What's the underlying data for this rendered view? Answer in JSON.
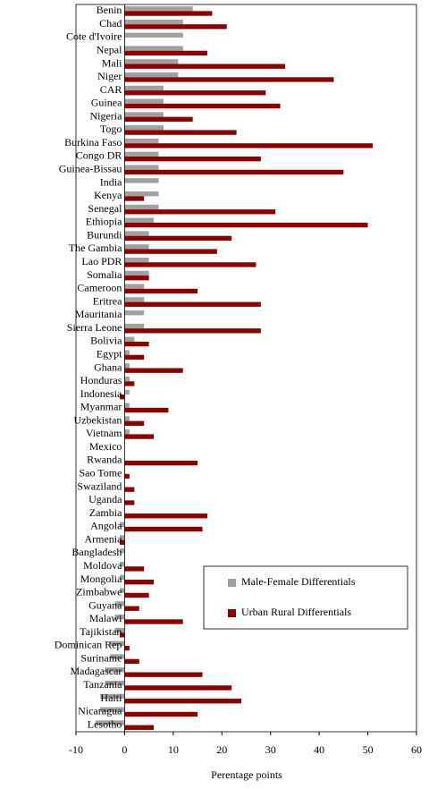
{
  "chart_data": {
    "type": "hbar",
    "xlabel": "Perentage points",
    "categories": [
      "Benin",
      "Chad",
      "Cote d'Ivoire",
      "Nepal",
      "Mali",
      "Niger",
      "CAR",
      "Guinea",
      "Nigeria",
      "Togo",
      "Burkina Faso",
      "Congo DR",
      "Guinea-Bissau",
      "India",
      "Kenya",
      "Senegal",
      "Ethiopia",
      "Burundi",
      "The Gambia",
      "Lao PDR",
      "Somalia",
      "Cameroon",
      "Eritrea",
      "Mauritania",
      "Sierra Leone",
      "Bolivia",
      "Egypt",
      "Ghana",
      "Honduras",
      "Indonesia",
      "Myanmar",
      "Uzbekistan",
      "Vietnam",
      "Mexico",
      "Rwanda",
      "Sao Tome",
      "Swaziland",
      "Uganda",
      "Zambia",
      "Angola",
      "Armenia",
      "Bangladesh",
      "Moldova",
      "Mongolia",
      "Zimbabwe",
      "Guyana",
      "Malawi",
      "Tajikistan",
      "Dominican Rep",
      "Suriname",
      "Madagascar",
      "Tanzania",
      "Haiti",
      "Nicaragua",
      "Lesotho"
    ],
    "series": [
      {
        "name": "Male-Female Differentials",
        "color": "#a0a0a0",
        "values": [
          14,
          12,
          12,
          12,
          11,
          11,
          8,
          8,
          8,
          8,
          7,
          7,
          7,
          7,
          7,
          7,
          6,
          5,
          5,
          5,
          5,
          4,
          4,
          4,
          4,
          2,
          1,
          1,
          1,
          1,
          1,
          1,
          1,
          null,
          0,
          0,
          0,
          0,
          0,
          -1,
          -1,
          -1,
          -1,
          -1,
          -1,
          -2,
          -2,
          -2,
          -3,
          -3,
          -4,
          -4,
          -5,
          -5,
          -6
        ]
      },
      {
        "name": "Urban Rural Differentials",
        "color": "#8b0000",
        "values": [
          18,
          21,
          null,
          17,
          33,
          43,
          29,
          32,
          14,
          23,
          51,
          28,
          45,
          null,
          4,
          31,
          50,
          22,
          19,
          27,
          5,
          15,
          28,
          null,
          28,
          5,
          4,
          12,
          2,
          -1,
          9,
          4,
          6,
          null,
          15,
          1,
          2,
          2,
          17,
          16,
          -1,
          null,
          4,
          6,
          5,
          3,
          12,
          -1,
          1,
          3,
          16,
          22,
          24,
          15,
          6
        ]
      }
    ],
    "xlim": [
      -10,
      60
    ],
    "xticks": [
      -10,
      0,
      10,
      20,
      30,
      40,
      50,
      60
    ],
    "legend": "lower right"
  }
}
